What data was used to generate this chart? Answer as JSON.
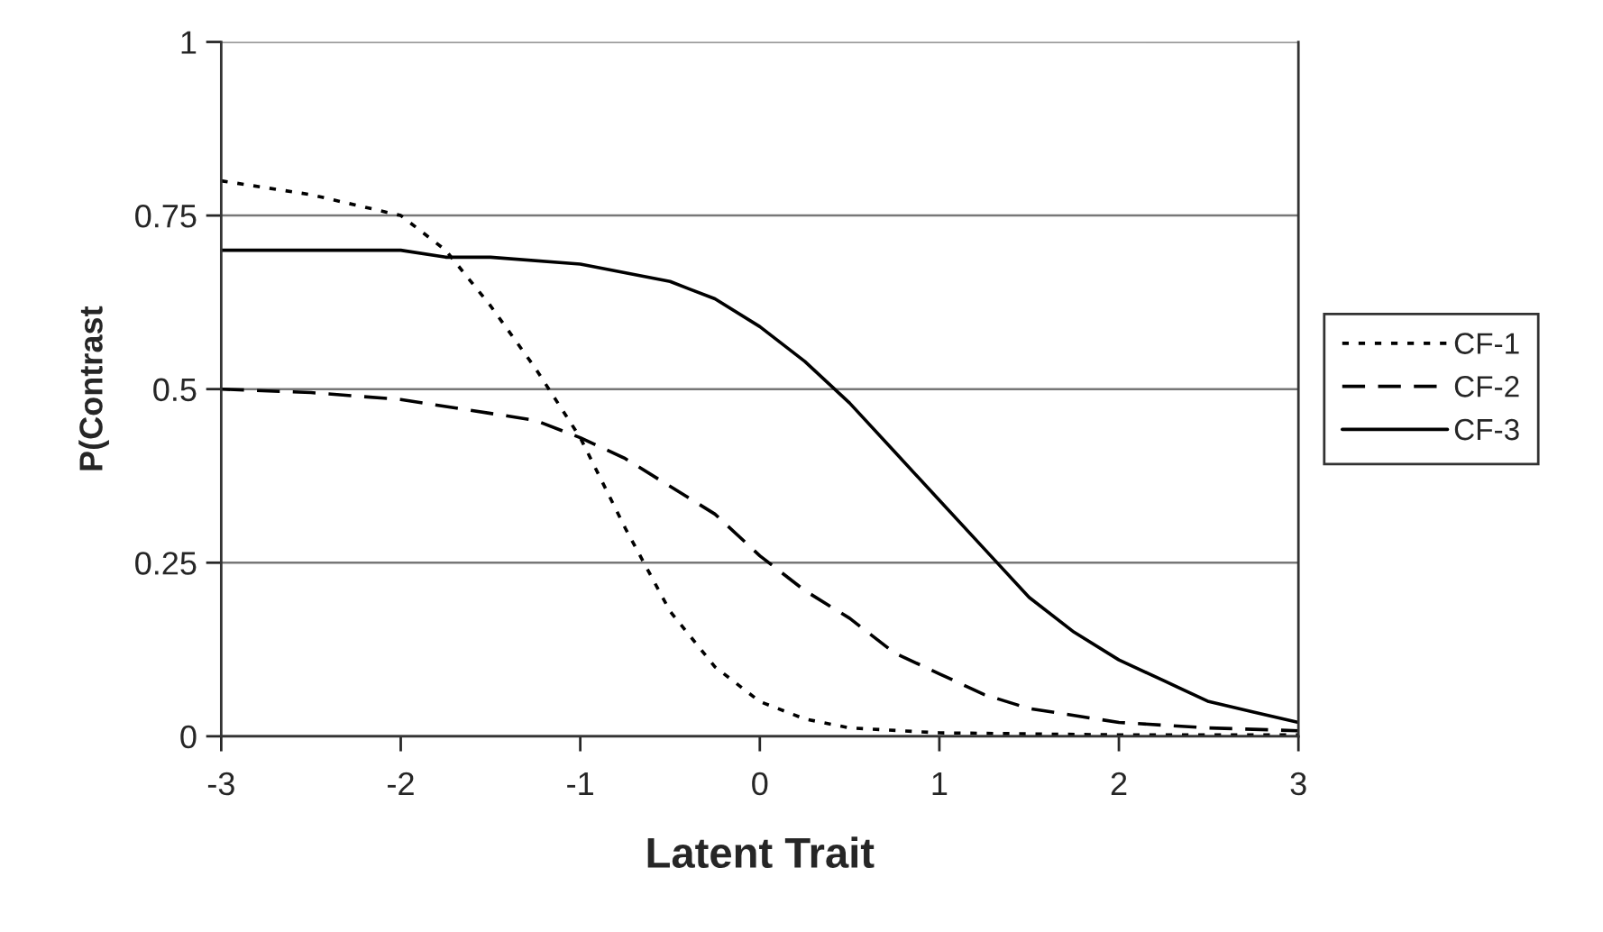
{
  "chart_data": {
    "type": "line",
    "xlabel": "Latent Trait",
    "ylabel": "P(Contrast",
    "series": [
      {
        "name": "CF-1",
        "color": "#000000",
        "line_style": "dotted",
        "x": [
          -3,
          -2.5,
          -2,
          -1.75,
          -1.5,
          -1.25,
          -1,
          -0.75,
          -0.5,
          -0.25,
          0,
          0.25,
          0.5,
          1,
          2,
          3
        ],
        "values": [
          0.8,
          0.78,
          0.75,
          0.7,
          0.62,
          0.53,
          0.43,
          0.3,
          0.18,
          0.1,
          0.05,
          0.025,
          0.012,
          0.005,
          0.002,
          0.002
        ]
      },
      {
        "name": "CF-2",
        "color": "#000000",
        "line_style": "dashed",
        "x": [
          -3,
          -2.5,
          -2,
          -1.5,
          -1.25,
          -1,
          -0.75,
          -0.5,
          -0.25,
          0,
          0.25,
          0.5,
          0.75,
          1,
          1.25,
          1.5,
          2,
          2.5,
          3
        ],
        "values": [
          0.5,
          0.495,
          0.485,
          0.465,
          0.455,
          0.43,
          0.4,
          0.36,
          0.32,
          0.26,
          0.21,
          0.17,
          0.12,
          0.09,
          0.06,
          0.04,
          0.02,
          0.012,
          0.008
        ]
      },
      {
        "name": "CF-3",
        "color": "#000000",
        "line_style": "solid",
        "x": [
          -3,
          -2,
          -1.75,
          -1.5,
          -1,
          -0.5,
          -0.25,
          0,
          0.25,
          0.5,
          0.75,
          1,
          1.25,
          1.5,
          1.75,
          2,
          2.25,
          2.5,
          2.75,
          3
        ],
        "values": [
          0.7,
          0.7,
          0.69,
          0.69,
          0.68,
          0.655,
          0.63,
          0.59,
          0.54,
          0.48,
          0.41,
          0.34,
          0.27,
          0.2,
          0.15,
          0.11,
          0.08,
          0.05,
          0.035,
          0.02
        ]
      }
    ],
    "xlim": [
      -3,
      3
    ],
    "xticks": [
      -3,
      -2,
      -1,
      0,
      1,
      2,
      3
    ],
    "ylim": [
      0,
      1
    ],
    "yticks": [
      0,
      0.25,
      0.5,
      0.75,
      1
    ],
    "grid": "y",
    "legend": "right",
    "marker": "none"
  }
}
